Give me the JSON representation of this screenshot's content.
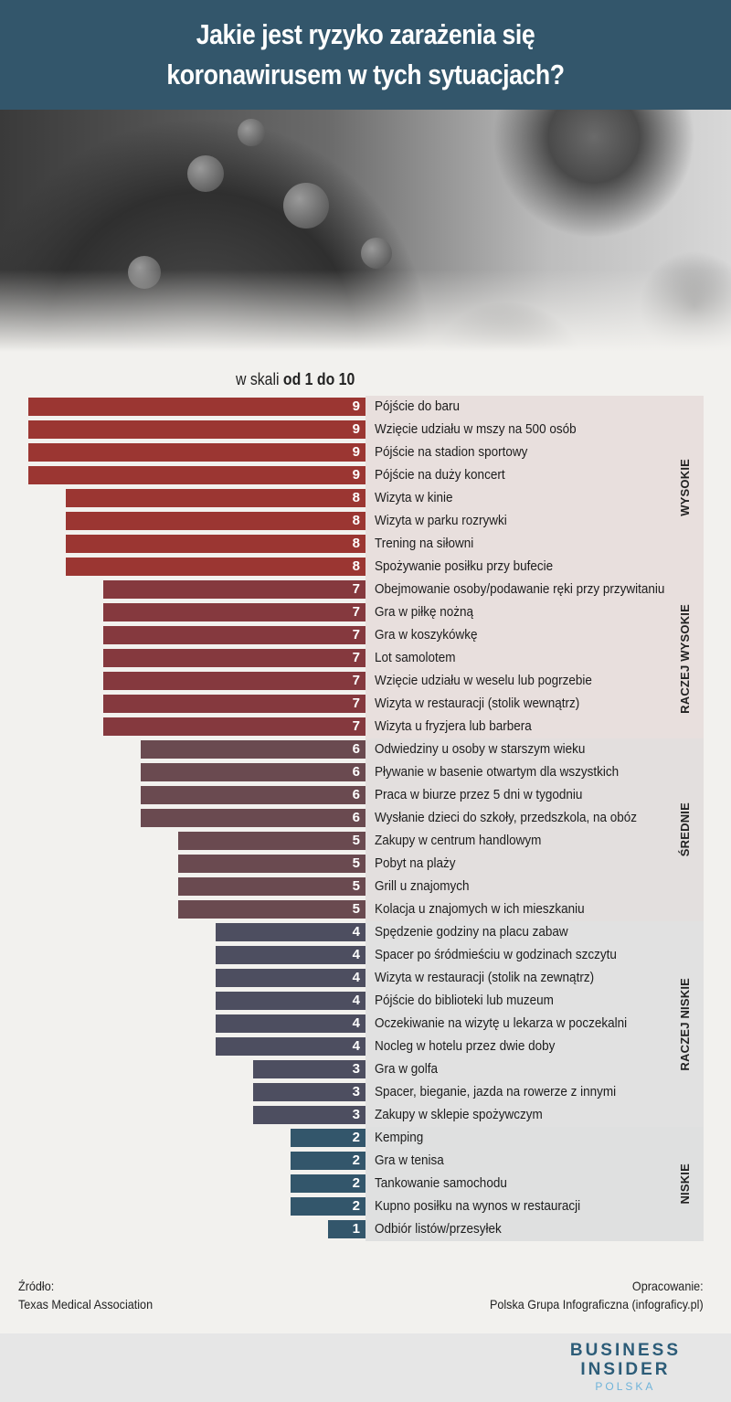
{
  "header": {
    "title_line1": "Jakie jest ryzyko zarażenia się",
    "title_line2": "koronawirusem w tych sytuacjach?"
  },
  "scale": {
    "prefix": "w skali ",
    "bold": "od 1 do 10"
  },
  "chart_data": {
    "type": "bar",
    "orientation": "horizontal",
    "title": "Jakie jest ryzyko zarażenia się koronawirusem w tych sytuacjach?",
    "subtitle": "w skali od 1 do 10",
    "xlim": [
      0,
      10
    ],
    "groups": [
      {
        "name": "WYSOKIE",
        "color": "#9b3632",
        "band": "#e8dfdd"
      },
      {
        "name": "RACZEJ WYSOKIE",
        "color": "#85393e",
        "band": "#e8dfdd"
      },
      {
        "name": "ŚREDNIE",
        "color": "#6a4a50",
        "band": "#e3dfde"
      },
      {
        "name": "RACZEJ NISKIE",
        "color": "#4d4e60",
        "band": "#e1e1e1"
      },
      {
        "name": "NISKIE",
        "color": "#33566b",
        "band": "#dfe0e0"
      }
    ],
    "categories": [
      "Pójście do baru",
      "Wzięcie udziału w mszy na 500 osób",
      "Pójście na stadion sportowy",
      "Pójście na duży koncert",
      "Wizyta w kinie",
      "Wizyta w parku rozrywki",
      "Trening na siłowni",
      "Spożywanie posiłku przy bufecie",
      "Obejmowanie osoby/podawanie ręki przy przywitaniu",
      "Gra w piłkę nożną",
      "Gra w koszykówkę",
      "Lot samolotem",
      "Wzięcie udziału w weselu lub pogrzebie",
      "Wizyta w restauracji (stolik wewnątrz)",
      "Wizyta u fryzjera lub barbera",
      "Odwiedziny u osoby w starszym wieku",
      "Pływanie w basenie otwartym dla wszystkich",
      "Praca w biurze przez 5 dni w tygodniu",
      "Wysłanie dzieci do szkoły, przedszkola, na obóz",
      "Zakupy w centrum handlowym",
      "Pobyt na plaży",
      "Grill u znajomych",
      "Kolacja u znajomych w ich mieszkaniu",
      "Spędzenie godziny na placu zabaw",
      "Spacer po śródmieściu w godzinach szczytu",
      "Wizyta w restauracji (stolik na zewnątrz)",
      "Pójście do biblioteki lub muzeum",
      "Oczekiwanie na wizytę u lekarza w poczekalni",
      "Nocleg w hotelu przez dwie doby",
      "Gra w golfa",
      "Spacer, bieganie, jazda na rowerze z innymi",
      "Zakupy w sklepie spożywczym",
      "Kemping",
      "Gra w tenisa",
      "Tankowanie samochodu",
      "Kupno posiłku na wynos w restauracji",
      "Odbiór listów/przesyłek"
    ],
    "values": [
      9,
      9,
      9,
      9,
      8,
      8,
      8,
      8,
      7,
      7,
      7,
      7,
      7,
      7,
      7,
      6,
      6,
      6,
      6,
      5,
      5,
      5,
      5,
      4,
      4,
      4,
      4,
      4,
      4,
      3,
      3,
      3,
      2,
      2,
      2,
      2,
      1
    ],
    "group_index": [
      0,
      0,
      0,
      0,
      0,
      0,
      0,
      0,
      1,
      1,
      1,
      1,
      1,
      1,
      1,
      2,
      2,
      2,
      2,
      2,
      2,
      2,
      2,
      3,
      3,
      3,
      3,
      3,
      3,
      3,
      3,
      3,
      4,
      4,
      4,
      4,
      4
    ]
  },
  "footer": {
    "source_label": "Źródło:",
    "source_value": "Texas Medical Association",
    "author_label": "Opracowanie:",
    "author_value": "Polska Grupa Infograficzna (infograficy.pl)"
  },
  "brand": {
    "line1": "BUSINESS",
    "line2": "INSIDER",
    "line3": "POLSKA"
  }
}
